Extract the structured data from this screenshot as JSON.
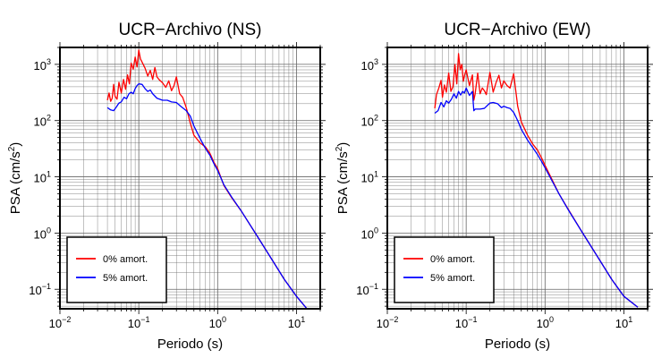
{
  "chart_data": [
    {
      "type": "line",
      "title": "UCR−Archivo (NS)",
      "xlabel": "Periodo (s)",
      "ylabel_main": "PSA (cm/s",
      "ylabel_sup": "2",
      "ylabel_end": ")",
      "x_scale": "log",
      "y_scale": "log",
      "xlim": [
        0.01,
        20
      ],
      "ylim": [
        0.045,
        2000
      ],
      "grid": true,
      "legend_position": "bottom-left",
      "x_ticks": [
        {
          "value": 0.01,
          "base": "10",
          "exp": "−2"
        },
        {
          "value": 0.1,
          "base": "10",
          "exp": "−1"
        },
        {
          "value": 1,
          "base": "10",
          "exp": "0"
        },
        {
          "value": 10,
          "base": "10",
          "exp": "1"
        }
      ],
      "y_ticks": [
        {
          "value": 0.1,
          "base": "10",
          "exp": "−1"
        },
        {
          "value": 1,
          "base": "10",
          "exp": "0"
        },
        {
          "value": 10,
          "base": "10",
          "exp": "1"
        },
        {
          "value": 100,
          "base": "10",
          "exp": "2"
        },
        {
          "value": 1000,
          "base": "10",
          "exp": "3"
        }
      ],
      "series": [
        {
          "name": "0% amort.",
          "color": "#ff0000",
          "x": [
            0.04,
            0.042,
            0.044,
            0.046,
            0.048,
            0.05,
            0.053,
            0.056,
            0.06,
            0.064,
            0.068,
            0.072,
            0.076,
            0.08,
            0.085,
            0.09,
            0.095,
            0.1,
            0.105,
            0.11,
            0.12,
            0.13,
            0.14,
            0.15,
            0.16,
            0.17,
            0.18,
            0.2,
            0.22,
            0.24,
            0.26,
            0.28,
            0.3,
            0.33,
            0.36,
            0.4,
            0.45,
            0.5,
            0.6,
            0.7,
            0.8,
            0.9,
            1.0,
            1.2,
            1.5,
            2.0,
            3.0,
            5.0,
            7.0,
            10.0,
            15.0
          ],
          "y": [
            230,
            310,
            220,
            250,
            440,
            270,
            240,
            480,
            310,
            540,
            360,
            650,
            450,
            1050,
            820,
            1350,
            900,
            1800,
            1250,
            1100,
            860,
            620,
            780,
            540,
            880,
            600,
            540,
            470,
            390,
            510,
            340,
            420,
            600,
            300,
            260,
            170,
            90,
            55,
            40,
            34,
            26,
            18,
            14,
            7.0,
            4.3,
            2.45,
            1.0,
            0.32,
            0.15,
            0.075,
            0.038
          ]
        },
        {
          "name": "5% amort.",
          "color": "#0000ff",
          "x": [
            0.04,
            0.044,
            0.048,
            0.052,
            0.056,
            0.06,
            0.065,
            0.07,
            0.075,
            0.08,
            0.085,
            0.09,
            0.095,
            0.1,
            0.11,
            0.12,
            0.13,
            0.14,
            0.15,
            0.17,
            0.2,
            0.23,
            0.26,
            0.3,
            0.34,
            0.4,
            0.45,
            0.5,
            0.6,
            0.7,
            0.8,
            0.9,
            1.0,
            1.2,
            1.5,
            2.0,
            3.0,
            5.0,
            7.0,
            10.0,
            15.0
          ],
          "y": [
            170,
            155,
            150,
            175,
            205,
            215,
            260,
            245,
            300,
            320,
            300,
            370,
            420,
            450,
            440,
            370,
            330,
            350,
            300,
            250,
            230,
            230,
            215,
            210,
            180,
            150,
            120,
            80,
            48,
            32,
            24,
            17,
            13,
            7.2,
            4.4,
            2.45,
            1.0,
            0.32,
            0.15,
            0.075,
            0.038
          ]
        }
      ]
    },
    {
      "type": "line",
      "title": "UCR−Archivo (EW)",
      "xlabel": "Periodo (s)",
      "ylabel_main": "PSA (cm/s",
      "ylabel_sup": "2",
      "ylabel_end": ")",
      "x_scale": "log",
      "y_scale": "log",
      "xlim": [
        0.01,
        20
      ],
      "ylim": [
        0.045,
        2000
      ],
      "grid": true,
      "legend_position": "bottom-left",
      "x_ticks": [
        {
          "value": 0.01,
          "base": "10",
          "exp": "−2"
        },
        {
          "value": 0.1,
          "base": "10",
          "exp": "−1"
        },
        {
          "value": 1,
          "base": "10",
          "exp": "0"
        },
        {
          "value": 10,
          "base": "10",
          "exp": "1"
        }
      ],
      "y_ticks": [
        {
          "value": 0.1,
          "base": "10",
          "exp": "−1"
        },
        {
          "value": 1,
          "base": "10",
          "exp": "0"
        },
        {
          "value": 10,
          "base": "10",
          "exp": "1"
        },
        {
          "value": 100,
          "base": "10",
          "exp": "2"
        },
        {
          "value": 1000,
          "base": "10",
          "exp": "3"
        }
      ],
      "series": [
        {
          "name": "0% amort.",
          "color": "#ff0000",
          "x": [
            0.04,
            0.042,
            0.045,
            0.048,
            0.05,
            0.053,
            0.056,
            0.06,
            0.064,
            0.068,
            0.072,
            0.076,
            0.08,
            0.084,
            0.088,
            0.092,
            0.096,
            0.1,
            0.11,
            0.12,
            0.125,
            0.13,
            0.14,
            0.15,
            0.16,
            0.17,
            0.18,
            0.2,
            0.22,
            0.24,
            0.26,
            0.28,
            0.3,
            0.33,
            0.36,
            0.4,
            0.45,
            0.5,
            0.6,
            0.7,
            0.8,
            0.9,
            1.0,
            1.2,
            1.5,
            2.0,
            3.0,
            5.0,
            7.0,
            10.0,
            15.0
          ],
          "y": [
            165,
            290,
            380,
            520,
            260,
            430,
            320,
            700,
            330,
            400,
            1000,
            450,
            1550,
            800,
            1000,
            500,
            660,
            800,
            420,
            650,
            230,
            300,
            700,
            300,
            380,
            340,
            290,
            720,
            320,
            480,
            640,
            380,
            510,
            420,
            380,
            680,
            180,
            95,
            55,
            38,
            30,
            22,
            16,
            9.5,
            5.0,
            2.55,
            1.0,
            0.32,
            0.15,
            0.075,
            0.048
          ]
        },
        {
          "name": "5% amort.",
          "color": "#0000ff",
          "x": [
            0.04,
            0.044,
            0.048,
            0.052,
            0.056,
            0.06,
            0.065,
            0.07,
            0.075,
            0.08,
            0.085,
            0.09,
            0.095,
            0.1,
            0.11,
            0.12,
            0.125,
            0.13,
            0.14,
            0.15,
            0.17,
            0.2,
            0.22,
            0.25,
            0.28,
            0.3,
            0.33,
            0.36,
            0.4,
            0.45,
            0.5,
            0.6,
            0.7,
            0.8,
            0.9,
            1.0,
            1.2,
            1.5,
            2.0,
            3.0,
            5.0,
            7.0,
            10.0,
            15.0
          ],
          "y": [
            135,
            150,
            210,
            175,
            225,
            205,
            240,
            300,
            250,
            330,
            285,
            330,
            310,
            380,
            280,
            330,
            150,
            160,
            160,
            160,
            165,
            205,
            210,
            200,
            170,
            180,
            170,
            165,
            140,
            100,
            70,
            45,
            33,
            25,
            19,
            14.5,
            9.0,
            5.0,
            2.5,
            1.0,
            0.32,
            0.15,
            0.075,
            0.048
          ]
        }
      ]
    }
  ]
}
